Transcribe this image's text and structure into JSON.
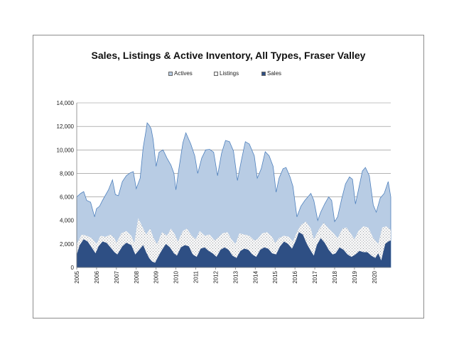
{
  "chart_data": {
    "type": "area",
    "title": "Sales, Listings & Active Inventory, All Types, Fraser Valley",
    "xlabel": "",
    "ylabel": "",
    "ylim": [
      0,
      14000
    ],
    "yticks": [
      "0",
      "2,000",
      "4,000",
      "6,000",
      "8,000",
      "10,000",
      "12,000",
      "14,000"
    ],
    "ytick_values": [
      0,
      2000,
      4000,
      6000,
      8000,
      10000,
      12000,
      14000
    ],
    "categories": [
      "2005",
      "2006",
      "2007",
      "2008",
      "2009",
      "2010",
      "2011",
      "2012",
      "2013",
      "2014",
      "2015",
      "2016",
      "2017",
      "2018",
      "2019",
      "2020"
    ],
    "x_start": 2005.0,
    "x_end": 2020.83,
    "grid": true,
    "legend_position": "top",
    "legend": [
      "Actives",
      "Listings",
      "Sales"
    ],
    "colors": {
      "actives_fill": "#b8cce4",
      "actives_line": "#4f81bd",
      "listings_fill": "#f2f2f2",
      "sales_fill": "#2e4f84",
      "grid": "#888888",
      "axis_text": "#222222"
    },
    "series": [
      {
        "name": "Actives",
        "x": [
          2005.0,
          2005.2,
          2005.35,
          2005.5,
          2005.7,
          2005.9,
          2006.0,
          2006.15,
          2006.3,
          2006.6,
          2006.8,
          2006.95,
          2007.1,
          2007.3,
          2007.5,
          2007.7,
          2007.85,
          2008.0,
          2008.2,
          2008.35,
          2008.5,
          2008.55,
          2008.65,
          2008.75,
          2008.85,
          2009.0,
          2009.15,
          2009.35,
          2009.55,
          2009.75,
          2009.9,
          2010.0,
          2010.15,
          2010.35,
          2010.5,
          2010.75,
          2010.95,
          2011.1,
          2011.3,
          2011.5,
          2011.7,
          2011.9,
          2012.1,
          2012.3,
          2012.5,
          2012.7,
          2012.9,
          2013.1,
          2013.3,
          2013.5,
          2013.7,
          2013.95,
          2014.1,
          2014.3,
          2014.5,
          2014.7,
          2014.9,
          2015.05,
          2015.2,
          2015.4,
          2015.55,
          2015.75,
          2015.9,
          2016.1,
          2016.3,
          2016.5,
          2016.65,
          2016.8,
          2016.95,
          2017.15,
          2017.3,
          2017.5,
          2017.7,
          2017.85,
          2018.0,
          2018.15,
          2018.35,
          2018.55,
          2018.75,
          2018.9,
          2019.05,
          2019.25,
          2019.4,
          2019.55,
          2019.75,
          2019.95,
          2020.1,
          2020.3,
          2020.5,
          2020.7,
          2020.83
        ],
        "values": [
          6000,
          6300,
          6450,
          5700,
          5550,
          4300,
          5000,
          5200,
          5700,
          6600,
          7450,
          6200,
          6100,
          7300,
          7800,
          8050,
          8150,
          6700,
          7600,
          10200,
          11700,
          12300,
          12100,
          11800,
          10900,
          8600,
          9800,
          10000,
          9300,
          8700,
          8000,
          6600,
          8400,
          10600,
          11450,
          10500,
          9500,
          8000,
          9300,
          10000,
          10050,
          9800,
          7800,
          9700,
          10800,
          10700,
          9900,
          7400,
          9100,
          10700,
          10500,
          9500,
          7600,
          8400,
          9850,
          9500,
          8600,
          6400,
          7600,
          8400,
          8500,
          7700,
          6900,
          4300,
          5200,
          5700,
          6000,
          6300,
          5700,
          4000,
          4700,
          5400,
          6000,
          5700,
          3900,
          4300,
          5800,
          7100,
          7700,
          7500,
          5400,
          7000,
          8200,
          8500,
          7800,
          5300,
          4700,
          5900,
          6300,
          7300,
          6000
        ]
      },
      {
        "name": "Listings",
        "x": [
          2005.0,
          2005.25,
          2005.5,
          2005.75,
          2006.0,
          2006.2,
          2006.45,
          2006.7,
          2006.9,
          2007.0,
          2007.25,
          2007.5,
          2007.75,
          2007.9,
          2008.1,
          2008.3,
          2008.5,
          2008.7,
          2008.9,
          2009.05,
          2009.3,
          2009.55,
          2009.75,
          2009.95,
          2010.1,
          2010.35,
          2010.55,
          2010.8,
          2011.0,
          2011.2,
          2011.45,
          2011.7,
          2011.95,
          2012.1,
          2012.35,
          2012.6,
          2012.8,
          2013.0,
          2013.2,
          2013.45,
          2013.7,
          2013.95,
          2014.1,
          2014.35,
          2014.6,
          2014.85,
          2015.0,
          2015.2,
          2015.45,
          2015.7,
          2015.9,
          2016.1,
          2016.3,
          2016.55,
          2016.8,
          2016.95,
          2017.2,
          2017.45,
          2017.7,
          2017.95,
          2018.15,
          2018.4,
          2018.6,
          2018.85,
          2019.0,
          2019.2,
          2019.45,
          2019.7,
          2019.95,
          2020.2,
          2020.4,
          2020.6,
          2020.83
        ],
        "values": [
          2000,
          2800,
          2700,
          2500,
          2000,
          2700,
          2600,
          2800,
          2500,
          2100,
          2900,
          3100,
          2700,
          2100,
          4200,
          3500,
          2800,
          3300,
          2400,
          2000,
          3000,
          2700,
          3300,
          2800,
          2200,
          3100,
          3300,
          2700,
          2400,
          3100,
          2700,
          2800,
          2300,
          2500,
          2900,
          3000,
          2400,
          2000,
          2900,
          2800,
          2700,
          2300,
          2400,
          2900,
          3000,
          2600,
          2100,
          2500,
          2700,
          2600,
          2200,
          3000,
          3600,
          3900,
          3300,
          2400,
          3200,
          3800,
          3300,
          2900,
          2500,
          3300,
          3400,
          2800,
          2400,
          3100,
          3500,
          3400,
          2500,
          2000,
          3400,
          3500,
          3200
        ]
      },
      {
        "name": "Sales",
        "x": [
          2005.0,
          2005.15,
          2005.35,
          2005.55,
          2005.75,
          2005.95,
          2006.1,
          2006.3,
          2006.5,
          2006.7,
          2006.9,
          2007.05,
          2007.3,
          2007.5,
          2007.75,
          2007.95,
          2008.15,
          2008.35,
          2008.5,
          2008.65,
          2008.8,
          2008.95,
          2009.1,
          2009.3,
          2009.5,
          2009.7,
          2009.9,
          2010.05,
          2010.25,
          2010.45,
          2010.65,
          2010.85,
          2011.05,
          2011.25,
          2011.45,
          2011.65,
          2011.85,
          2012.05,
          2012.25,
          2012.45,
          2012.65,
          2012.85,
          2013.05,
          2013.25,
          2013.45,
          2013.65,
          2013.85,
          2014.05,
          2014.25,
          2014.45,
          2014.65,
          2014.85,
          2015.05,
          2015.25,
          2015.45,
          2015.65,
          2015.85,
          2016.05,
          2016.2,
          2016.4,
          2016.6,
          2016.8,
          2016.95,
          2017.1,
          2017.3,
          2017.5,
          2017.7,
          2017.9,
          2018.05,
          2018.25,
          2018.45,
          2018.65,
          2018.85,
          2019.05,
          2019.25,
          2019.45,
          2019.65,
          2019.85,
          2020.05,
          2020.2,
          2020.35,
          2020.55,
          2020.7,
          2020.83
        ],
        "values": [
          1100,
          1900,
          2400,
          2200,
          1700,
          1200,
          1800,
          2200,
          2100,
          1700,
          1300,
          1100,
          1800,
          2100,
          1900,
          1100,
          1500,
          1900,
          1300,
          800,
          500,
          400,
          900,
          1500,
          2000,
          1700,
          1200,
          1000,
          1700,
          1900,
          1800,
          1100,
          900,
          1600,
          1700,
          1400,
          1200,
          900,
          1500,
          1700,
          1500,
          1000,
          800,
          1400,
          1600,
          1500,
          1100,
          900,
          1500,
          1700,
          1600,
          1200,
          1100,
          1800,
          2200,
          2000,
          1600,
          2300,
          3000,
          2800,
          2000,
          1400,
          1000,
          1900,
          2500,
          2100,
          1500,
          1100,
          1200,
          1700,
          1500,
          1100,
          900,
          1100,
          1400,
          1300,
          1300,
          1000,
          800,
          1200,
          600,
          2000,
          2200,
          2300
        ]
      }
    ]
  }
}
